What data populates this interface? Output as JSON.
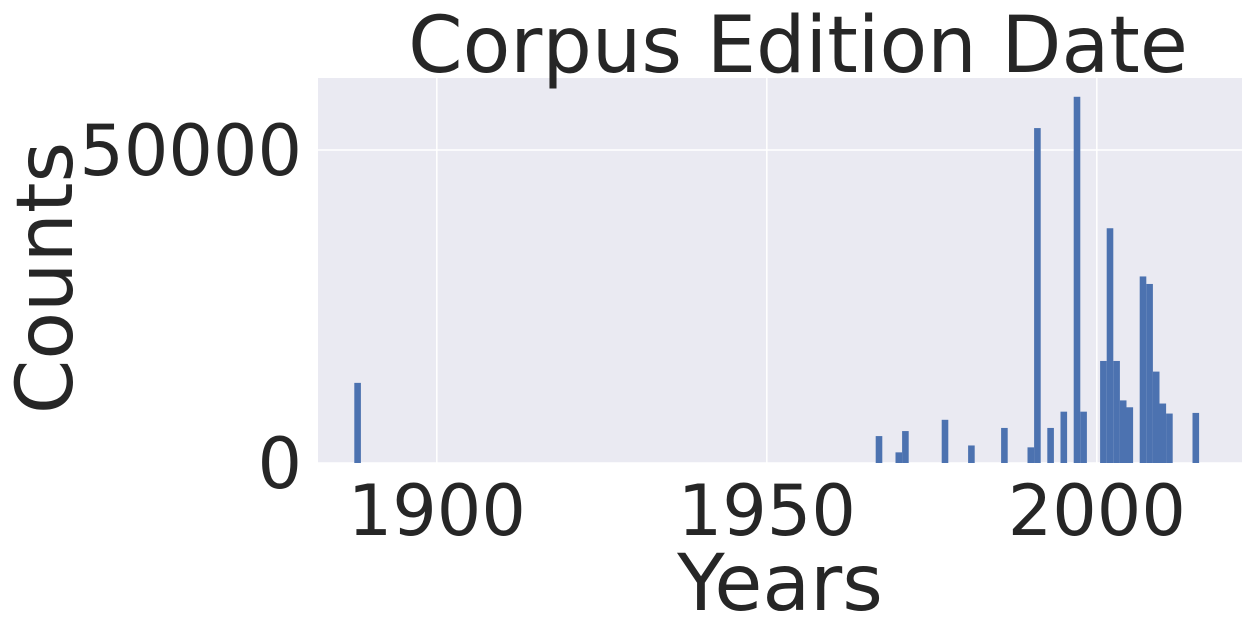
{
  "chart_data": {
    "type": "bar",
    "title": "Corpus Edition Date",
    "xlabel": "Years",
    "ylabel": "Counts",
    "xlim": [
      1882,
      2022
    ],
    "ylim": [
      0,
      61500
    ],
    "xticks": [
      1900,
      1950,
      2000
    ],
    "yticks": [
      0,
      50000
    ],
    "xtick_labels": [
      "1900",
      "1950",
      "2000"
    ],
    "ytick_labels": [
      "0",
      "50000"
    ],
    "grid": true,
    "colors": {
      "bar": "#4c72b0",
      "background": "#eaeaf2",
      "grid": "#ffffff",
      "text": "#262626"
    },
    "series": [
      {
        "bar_width_years": 1,
        "x": [
          1888,
          1967,
          1970,
          1971,
          1977,
          1981,
          1986,
          1990,
          1991,
          1993,
          1995,
          1997,
          1998,
          2001,
          2002,
          2003,
          2004,
          2005,
          2007,
          2008,
          2009,
          2010,
          2011,
          2015
        ],
        "values": [
          12800,
          4300,
          1700,
          5100,
          6900,
          2800,
          5600,
          2500,
          53500,
          5600,
          8200,
          58500,
          8200,
          16300,
          37500,
          16300,
          10000,
          8900,
          29800,
          28600,
          14600,
          9500,
          7900,
          8000
        ]
      }
    ]
  }
}
